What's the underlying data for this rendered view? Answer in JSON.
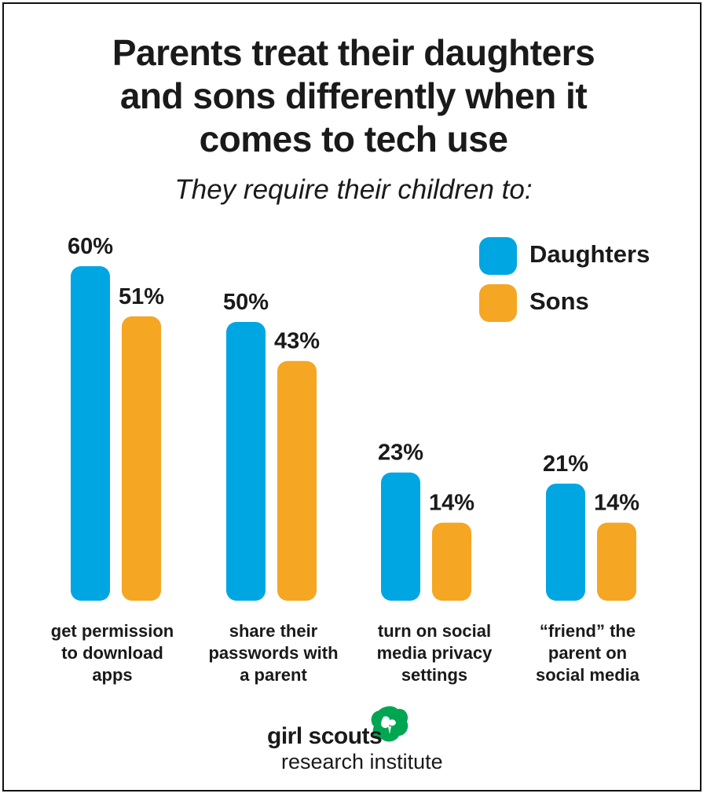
{
  "header": {
    "title_line1": "Parents treat their daughters",
    "title_line2": "and sons differently when it",
    "title_line3": "comes to tech use",
    "subtitle": "They require their children to:"
  },
  "legend": {
    "daughters": "Daughters",
    "sons": "Sons"
  },
  "colors": {
    "daughters": "#00a6e2",
    "sons": "#f5a623",
    "text": "#1a1a1a"
  },
  "chart_data": {
    "type": "bar",
    "title": "Parents treat their daughters and sons differently when it comes to tech use",
    "subtitle": "They require their children to:",
    "categories": [
      "get permission to download apps",
      "share their passwords with a parent",
      "turn on social media privacy settings",
      "“friend” the parent on social media"
    ],
    "category_lines": [
      [
        "get permission",
        "to download",
        "apps"
      ],
      [
        "share their",
        "passwords with",
        "a parent"
      ],
      [
        "turn on social",
        "media privacy",
        "settings"
      ],
      [
        "“friend” the",
        "parent on",
        "social media"
      ]
    ],
    "series": [
      {
        "name": "Daughters",
        "values": [
          60,
          50,
          23,
          21
        ],
        "labels": [
          "60%",
          "50%",
          "23%",
          "21%"
        ]
      },
      {
        "name": "Sons",
        "values": [
          51,
          43,
          14,
          14
        ],
        "labels": [
          "51%",
          "43%",
          "14%",
          "14%"
        ]
      }
    ],
    "unit": "%",
    "ylim": [
      0,
      60
    ],
    "grid": false,
    "legend_position": "top-right"
  },
  "logo": {
    "line1": "girl scouts",
    "line2": "research institute"
  }
}
